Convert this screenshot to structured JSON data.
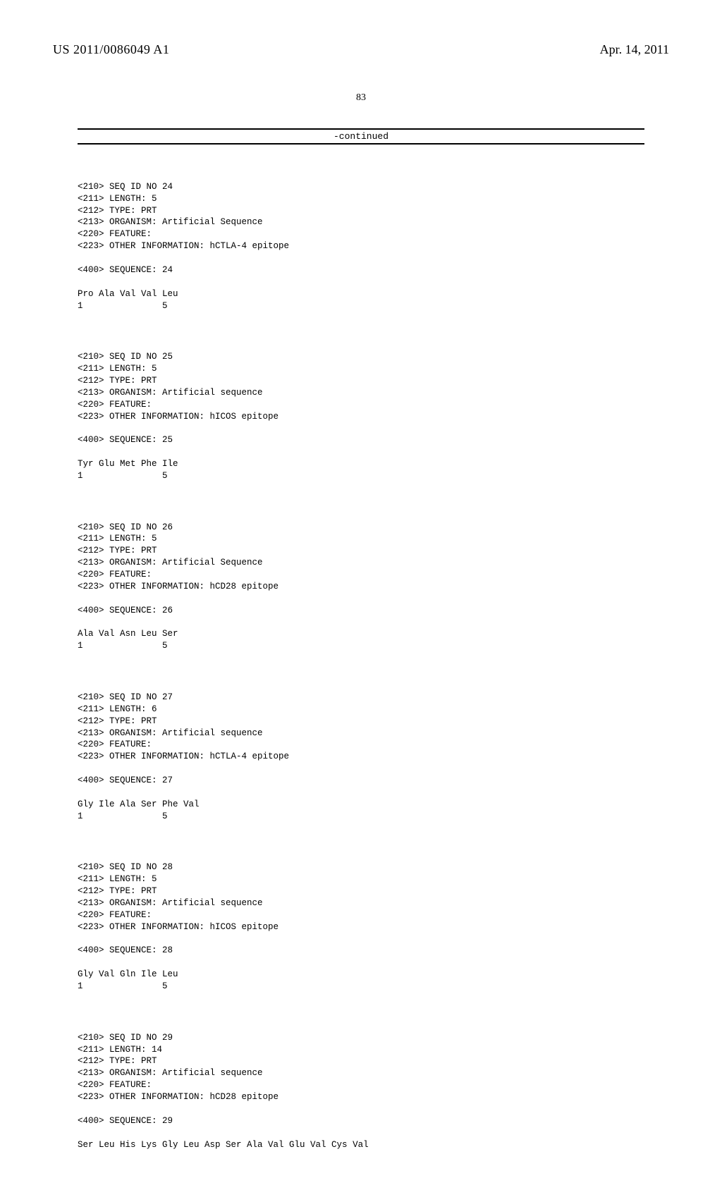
{
  "header": {
    "publication_number": "US 2011/0086049 A1",
    "publication_date": "Apr. 14, 2011"
  },
  "page_number": "83",
  "continued_label": "-continued",
  "sequences": [
    {
      "lines": [
        "<210> SEQ ID NO 24",
        "<211> LENGTH: 5",
        "<212> TYPE: PRT",
        "<213> ORGANISM: Artificial Sequence",
        "<220> FEATURE:",
        "<223> OTHER INFORMATION: hCTLA-4 epitope",
        "",
        "<400> SEQUENCE: 24",
        "",
        "Pro Ala Val Val Leu",
        "1               5"
      ]
    },
    {
      "lines": [
        "<210> SEQ ID NO 25",
        "<211> LENGTH: 5",
        "<212> TYPE: PRT",
        "<213> ORGANISM: Artificial sequence",
        "<220> FEATURE:",
        "<223> OTHER INFORMATION: hICOS epitope",
        "",
        "<400> SEQUENCE: 25",
        "",
        "Tyr Glu Met Phe Ile",
        "1               5"
      ]
    },
    {
      "lines": [
        "<210> SEQ ID NO 26",
        "<211> LENGTH: 5",
        "<212> TYPE: PRT",
        "<213> ORGANISM: Artificial Sequence",
        "<220> FEATURE:",
        "<223> OTHER INFORMATION: hCD28 epitope",
        "",
        "<400> SEQUENCE: 26",
        "",
        "Ala Val Asn Leu Ser",
        "1               5"
      ]
    },
    {
      "lines": [
        "<210> SEQ ID NO 27",
        "<211> LENGTH: 6",
        "<212> TYPE: PRT",
        "<213> ORGANISM: Artificial sequence",
        "<220> FEATURE:",
        "<223> OTHER INFORMATION: hCTLA-4 epitope",
        "",
        "<400> SEQUENCE: 27",
        "",
        "Gly Ile Ala Ser Phe Val",
        "1               5"
      ]
    },
    {
      "lines": [
        "<210> SEQ ID NO 28",
        "<211> LENGTH: 5",
        "<212> TYPE: PRT",
        "<213> ORGANISM: Artificial sequence",
        "<220> FEATURE:",
        "<223> OTHER INFORMATION: hICOS epitope",
        "",
        "<400> SEQUENCE: 28",
        "",
        "Gly Val Gln Ile Leu",
        "1               5"
      ]
    },
    {
      "lines": [
        "<210> SEQ ID NO 29",
        "<211> LENGTH: 14",
        "<212> TYPE: PRT",
        "<213> ORGANISM: Artificial sequence",
        "<220> FEATURE:",
        "<223> OTHER INFORMATION: hCD28 epitope",
        "",
        "<400> SEQUENCE: 29",
        "",
        "Ser Leu His Lys Gly Leu Asp Ser Ala Val Glu Val Cys Val"
      ]
    }
  ]
}
